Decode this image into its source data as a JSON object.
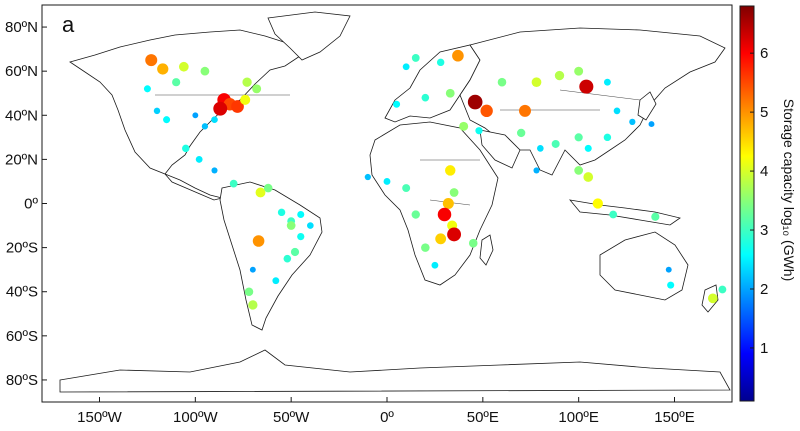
{
  "panel_label": "a",
  "x_ticks": [
    {
      "lon": -150,
      "label": "150ºW"
    },
    {
      "lon": -100,
      "label": "100ºW"
    },
    {
      "lon": -50,
      "label": "50ºW"
    },
    {
      "lon": 0,
      "label": "0º"
    },
    {
      "lon": 50,
      "label": "50ºE"
    },
    {
      "lon": 100,
      "label": "100ºE"
    },
    {
      "lon": 150,
      "label": "150ºE"
    }
  ],
  "y_ticks": [
    {
      "lat": 80,
      "label": "80ºN"
    },
    {
      "lat": 60,
      "label": "60ºN"
    },
    {
      "lat": 40,
      "label": "40ºN"
    },
    {
      "lat": 20,
      "label": "20ºN"
    },
    {
      "lat": 0,
      "label": "0º"
    },
    {
      "lat": -20,
      "label": "20ºS"
    },
    {
      "lat": -40,
      "label": "40ºS"
    },
    {
      "lat": -60,
      "label": "60ºS"
    },
    {
      "lat": -80,
      "label": "80ºS"
    }
  ],
  "colorbar": {
    "title": "Storage capacity log₁₀ (GWh)",
    "ticks": [
      1,
      2,
      3,
      4,
      5,
      6
    ],
    "range": [
      0.1,
      6.8
    ],
    "colormap": [
      "#00008f",
      "#0000ff",
      "#0080ff",
      "#00ffff",
      "#80ff80",
      "#ffff00",
      "#ff8000",
      "#ff0000",
      "#800000"
    ]
  },
  "chart_data": {
    "type": "scatter",
    "title": "",
    "xlabel": "",
    "ylabel": "",
    "xlim": [
      -180,
      180
    ],
    "ylim": [
      -90,
      90
    ],
    "value_name": "Storage capacity log₁₀ (GWh)",
    "points": [
      {
        "lon": -123,
        "lat": 65,
        "v": 5.2
      },
      {
        "lon": -117,
        "lat": 61,
        "v": 4.8
      },
      {
        "lon": -106,
        "lat": 62,
        "v": 4.0
      },
      {
        "lon": -95,
        "lat": 60,
        "v": 3.5
      },
      {
        "lon": -110,
        "lat": 55,
        "v": 3.2
      },
      {
        "lon": -125,
        "lat": 52,
        "v": 2.6
      },
      {
        "lon": -85,
        "lat": 47,
        "v": 6.0
      },
      {
        "lon": -82,
        "lat": 45,
        "v": 5.5
      },
      {
        "lon": -87,
        "lat": 43,
        "v": 6.2
      },
      {
        "lon": -78,
        "lat": 44,
        "v": 5.6
      },
      {
        "lon": -74,
        "lat": 47,
        "v": 4.2
      },
      {
        "lon": -68,
        "lat": 52,
        "v": 3.6
      },
      {
        "lon": -73,
        "lat": 55,
        "v": 3.8
      },
      {
        "lon": -90,
        "lat": 38,
        "v": 2.4
      },
      {
        "lon": -95,
        "lat": 35,
        "v": 2.2
      },
      {
        "lon": -100,
        "lat": 40,
        "v": 2.0
      },
      {
        "lon": -115,
        "lat": 38,
        "v": 2.6
      },
      {
        "lon": -120,
        "lat": 42,
        "v": 2.3
      },
      {
        "lon": -105,
        "lat": 25,
        "v": 2.8
      },
      {
        "lon": -98,
        "lat": 20,
        "v": 2.5
      },
      {
        "lon": -90,
        "lat": 15,
        "v": 2.1
      },
      {
        "lon": -80,
        "lat": 9,
        "v": 3.0
      },
      {
        "lon": -66,
        "lat": 5,
        "v": 4.1
      },
      {
        "lon": -62,
        "lat": 7,
        "v": 3.4
      },
      {
        "lon": -55,
        "lat": -4,
        "v": 2.8
      },
      {
        "lon": -50,
        "lat": -8,
        "v": 3.0
      },
      {
        "lon": -45,
        "lat": -15,
        "v": 2.7
      },
      {
        "lon": -48,
        "lat": -22,
        "v": 3.2
      },
      {
        "lon": -52,
        "lat": -25,
        "v": 2.9
      },
      {
        "lon": -67,
        "lat": -17,
        "v": 5.0
      },
      {
        "lon": -70,
        "lat": -30,
        "v": 2.0
      },
      {
        "lon": -72,
        "lat": -40,
        "v": 3.4
      },
      {
        "lon": -70,
        "lat": -46,
        "v": 3.8
      },
      {
        "lon": -58,
        "lat": -35,
        "v": 2.5
      },
      {
        "lon": -40,
        "lat": -10,
        "v": 2.4
      },
      {
        "lon": 10,
        "lat": 62,
        "v": 2.5
      },
      {
        "lon": 15,
        "lat": 66,
        "v": 3.0
      },
      {
        "lon": 28,
        "lat": 64,
        "v": 2.8
      },
      {
        "lon": 37,
        "lat": 67,
        "v": 5.0
      },
      {
        "lon": 5,
        "lat": 45,
        "v": 2.6
      },
      {
        "lon": 20,
        "lat": 48,
        "v": 2.9
      },
      {
        "lon": 33,
        "lat": 50,
        "v": 3.5
      },
      {
        "lon": 46,
        "lat": 46,
        "v": 6.6
      },
      {
        "lon": 52,
        "lat": 42,
        "v": 5.4
      },
      {
        "lon": 60,
        "lat": 55,
        "v": 3.4
      },
      {
        "lon": 72,
        "lat": 42,
        "v": 5.2
      },
      {
        "lon": 78,
        "lat": 55,
        "v": 4.0
      },
      {
        "lon": 90,
        "lat": 58,
        "v": 3.8
      },
      {
        "lon": 104,
        "lat": 53,
        "v": 6.3
      },
      {
        "lon": 100,
        "lat": 60,
        "v": 3.6
      },
      {
        "lon": 115,
        "lat": 55,
        "v": 2.5
      },
      {
        "lon": 40,
        "lat": 35,
        "v": 3.6
      },
      {
        "lon": 48,
        "lat": 33,
        "v": 2.7
      },
      {
        "lon": 70,
        "lat": 32,
        "v": 3.3
      },
      {
        "lon": 80,
        "lat": 25,
        "v": 2.4
      },
      {
        "lon": 78,
        "lat": 15,
        "v": 2.1
      },
      {
        "lon": 88,
        "lat": 27,
        "v": 3.1
      },
      {
        "lon": 100,
        "lat": 30,
        "v": 3.2
      },
      {
        "lon": 105,
        "lat": 25,
        "v": 2.6
      },
      {
        "lon": 115,
        "lat": 30,
        "v": 2.8
      },
      {
        "lon": 120,
        "lat": 42,
        "v": 2.4
      },
      {
        "lon": 128,
        "lat": 37,
        "v": 2.2
      },
      {
        "lon": 138,
        "lat": 36,
        "v": 2.0
      },
      {
        "lon": 100,
        "lat": 15,
        "v": 3.5
      },
      {
        "lon": 105,
        "lat": 12,
        "v": 4.0
      },
      {
        "lon": 110,
        "lat": 0,
        "v": 4.3
      },
      {
        "lon": 118,
        "lat": -5,
        "v": 3.0
      },
      {
        "lon": 140,
        "lat": -6,
        "v": 3.2
      },
      {
        "lon": 147,
        "lat": -30,
        "v": 2.0
      },
      {
        "lon": 148,
        "lat": -37,
        "v": 2.6
      },
      {
        "lon": 170,
        "lat": -43,
        "v": 4.0
      },
      {
        "lon": 175,
        "lat": -39,
        "v": 3.0
      },
      {
        "lon": 33,
        "lat": 15,
        "v": 4.4
      },
      {
        "lon": 35,
        "lat": 5,
        "v": 3.5
      },
      {
        "lon": 32,
        "lat": 0,
        "v": 4.7
      },
      {
        "lon": 30,
        "lat": -5,
        "v": 6.0
      },
      {
        "lon": 34,
        "lat": -10,
        "v": 4.2
      },
      {
        "lon": 35,
        "lat": -14,
        "v": 6.2
      },
      {
        "lon": 28,
        "lat": -16,
        "v": 4.6
      },
      {
        "lon": 20,
        "lat": -20,
        "v": 3.4
      },
      {
        "lon": 25,
        "lat": -28,
        "v": 2.5
      },
      {
        "lon": 10,
        "lat": 7,
        "v": 3.1
      },
      {
        "lon": 0,
        "lat": 10,
        "v": 2.5
      },
      {
        "lon": -10,
        "lat": 12,
        "v": 2.2
      },
      {
        "lon": 15,
        "lat": -5,
        "v": 3.3
      },
      {
        "lon": 45,
        "lat": -18,
        "v": 3.4
      },
      {
        "lon": -50,
        "lat": -10,
        "v": 3.5
      },
      {
        "lon": -45,
        "lat": -5,
        "v": 2.6
      }
    ]
  }
}
